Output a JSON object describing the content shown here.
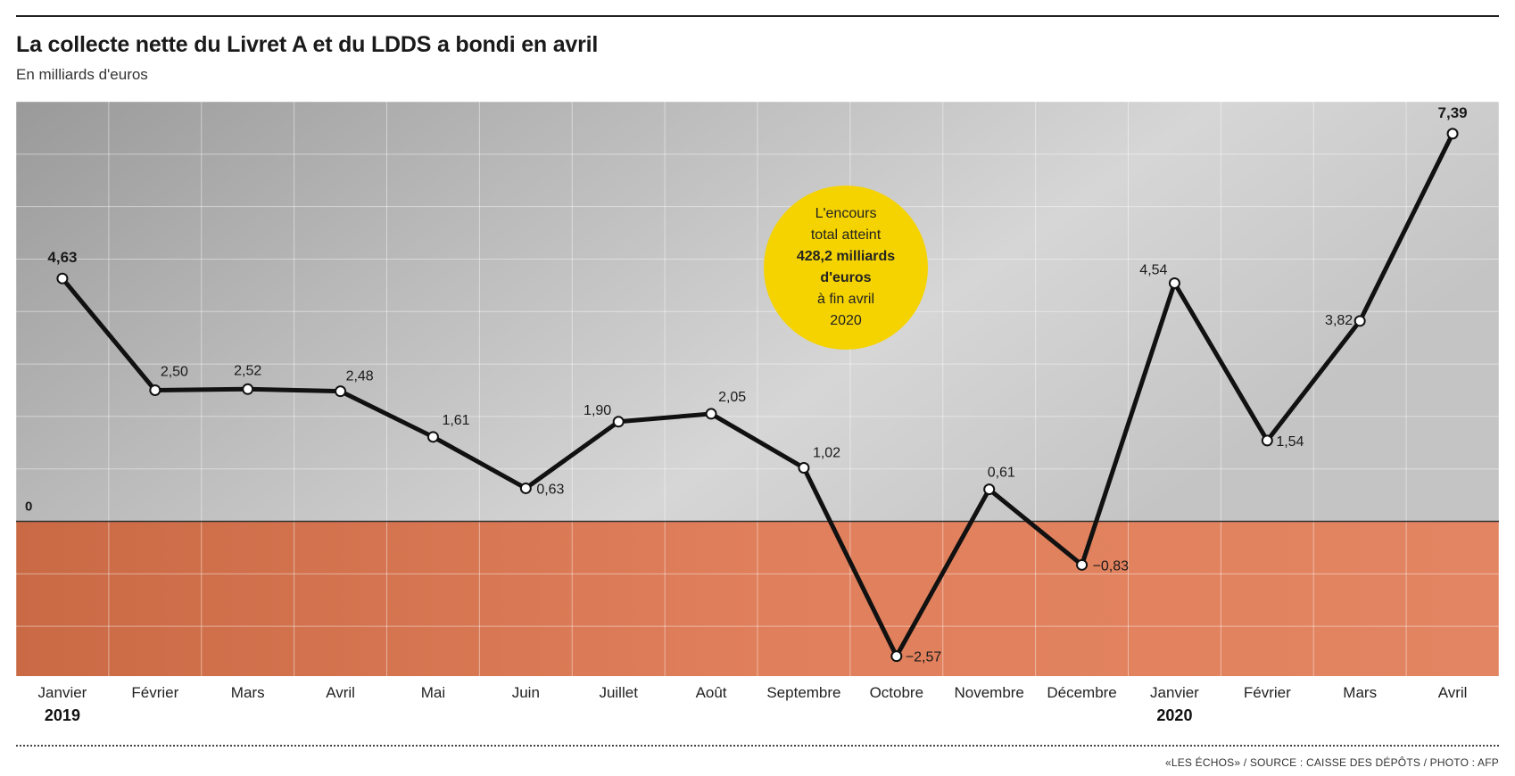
{
  "header": {
    "title": "La collecte nette du Livret A et du LDDS a bondi en avril",
    "subtitle": "En milliards d'euros"
  },
  "annotation": {
    "line1": "L'encours",
    "line2": "total atteint",
    "line3": "428,2 milliards",
    "line4": "d'euros",
    "line5": "à fin avril",
    "line6": "2020"
  },
  "footer": {
    "credit": "«LES ÉCHOS» / SOURCE : CAISSE DES DÉPÔTS / PHOTO : AFP"
  },
  "colors": {
    "line": "#111111",
    "negative_band": "#e07e5a",
    "positive_band": "#c9c9c9",
    "highlight": "#f5d300"
  },
  "chart_data": {
    "type": "line",
    "categories": [
      "Janvier",
      "Février",
      "Mars",
      "Avril",
      "Mai",
      "Juin",
      "Juillet",
      "Août",
      "Septembre",
      "Octobre",
      "Novembre",
      "Décembre",
      "Janvier",
      "Février",
      "Mars",
      "Avril"
    ],
    "year_labels": [
      {
        "index": 0,
        "label": "2019"
      },
      {
        "index": 12,
        "label": "2020"
      }
    ],
    "series": [
      {
        "values": [
          4.63,
          2.5,
          2.52,
          2.48,
          1.61,
          0.63,
          1.9,
          2.05,
          1.02,
          -2.57,
          0.61,
          -0.83,
          4.54,
          1.54,
          3.82,
          7.39
        ],
        "labels": [
          "4,63",
          "2,50",
          "2,52",
          "2,48",
          "1,61",
          "0,63",
          "1,90",
          "2,05",
          "1,02",
          "−2,57",
          "0,61",
          "−0,83",
          "4,54",
          "1,54",
          "3,82",
          "7,39"
        ]
      }
    ],
    "bold_labels": [
      0,
      15
    ],
    "zero_label": "0",
    "ylim": [
      -2.95,
      8.0
    ],
    "grid": true
  }
}
